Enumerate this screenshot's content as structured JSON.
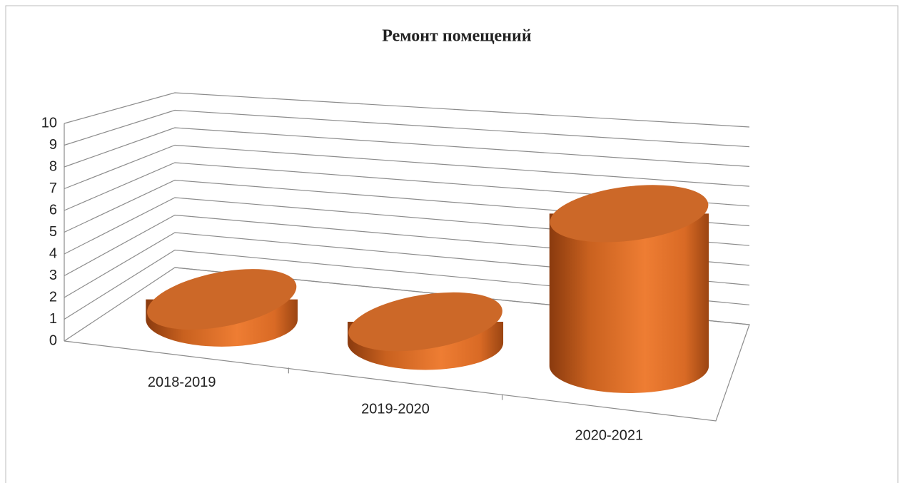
{
  "chart_data": {
    "type": "bar3d",
    "title": "Ремонт помещений",
    "categories": [
      "2018-2019",
      "2019-2020",
      "2020-2021"
    ],
    "values": [
      1,
      1,
      7
    ],
    "color": "#e8762d",
    "ylim": [
      0,
      10
    ],
    "yticks": [
      0,
      1,
      2,
      3,
      4,
      5,
      6,
      7,
      8,
      9,
      10
    ],
    "grid": true
  }
}
